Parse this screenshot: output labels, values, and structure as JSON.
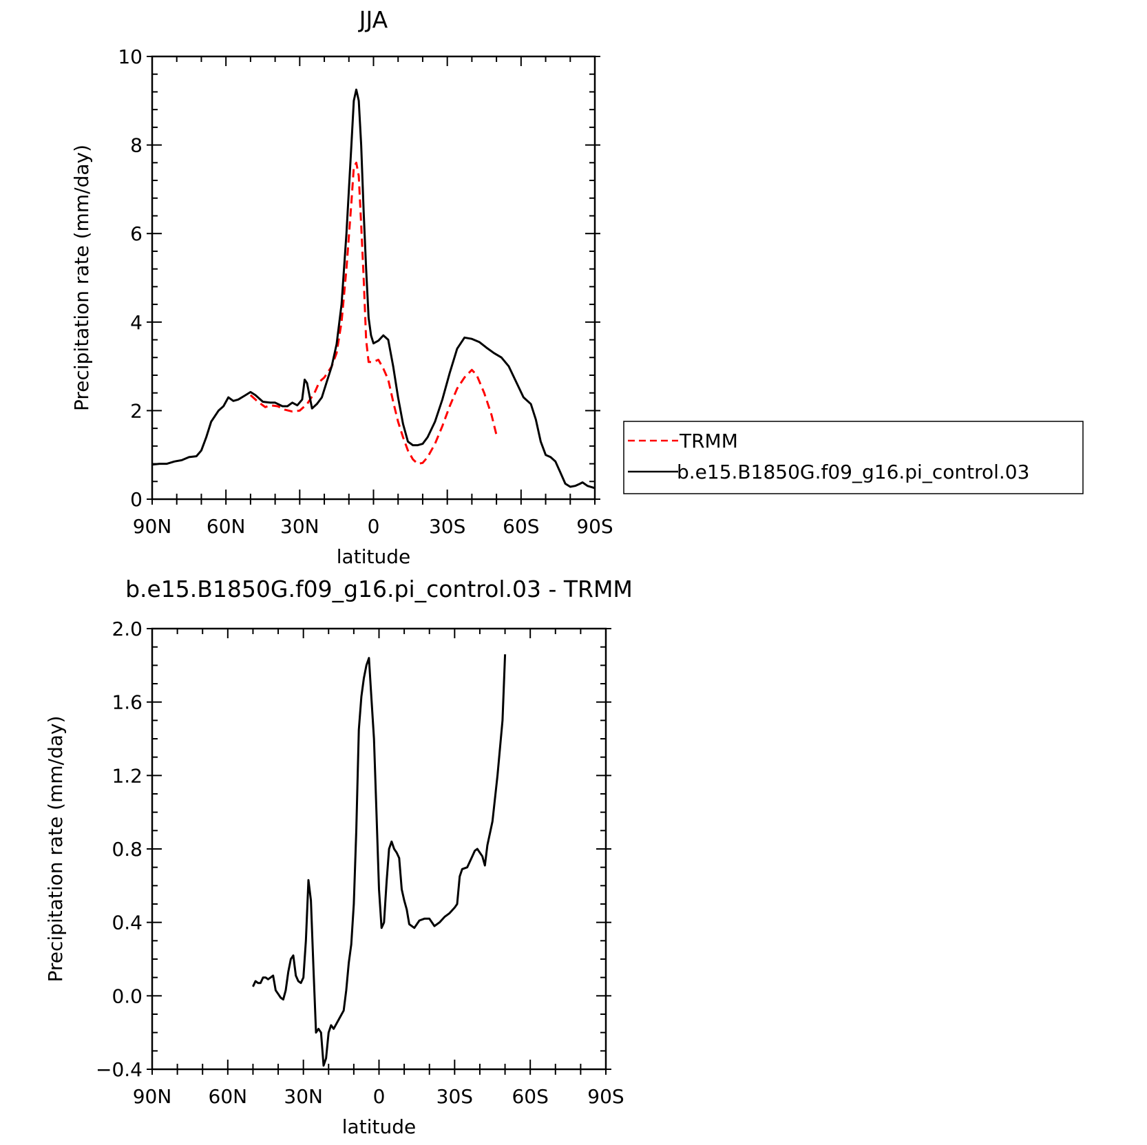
{
  "chart_data": [
    {
      "type": "line",
      "title": "JJA",
      "xlabel": "latitude",
      "ylabel": "Precipitation rate (mm/day)",
      "xlim": [
        -90,
        90
      ],
      "ylim": [
        0,
        10
      ],
      "x_note_tick_values": [
        -90,
        -60,
        -30,
        0,
        30,
        60,
        90
      ],
      "x_tick_labels": [
        "90N",
        "60N",
        "30N",
        "0",
        "30S",
        "60S",
        "90S"
      ],
      "y_tick_values": [
        0,
        2,
        4,
        6,
        8,
        10
      ],
      "y_tick_labels": [
        "0",
        "2",
        "4",
        "6",
        "8",
        "10"
      ],
      "legend_placement": "right",
      "series": [
        {
          "name": "TRMM",
          "color": "#ff0000",
          "style": "dashed",
          "points": [
            [
              -50,
              2.35
            ],
            [
              -47,
              2.2
            ],
            [
              -44,
              2.08
            ],
            [
              -42,
              2.12
            ],
            [
              -39,
              2.1
            ],
            [
              -36,
              2.02
            ],
            [
              -33,
              1.98
            ],
            [
              -30,
              2.0
            ],
            [
              -27,
              2.15
            ],
            [
              -24,
              2.4
            ],
            [
              -22,
              2.65
            ],
            [
              -20,
              2.75
            ],
            [
              -17,
              3.0
            ],
            [
              -15,
              3.3
            ],
            [
              -13,
              4.0
            ],
            [
              -11,
              5.2
            ],
            [
              -9,
              6.7
            ],
            [
              -8,
              7.5
            ],
            [
              -7,
              7.6
            ],
            [
              -6,
              7.3
            ],
            [
              -5,
              6.2
            ],
            [
              -4,
              5.0
            ],
            [
              -3,
              3.6
            ],
            [
              -2,
              3.1
            ],
            [
              0,
              3.1
            ],
            [
              2,
              3.15
            ],
            [
              4,
              2.95
            ],
            [
              6,
              2.7
            ],
            [
              8,
              2.2
            ],
            [
              10,
              1.75
            ],
            [
              12,
              1.4
            ],
            [
              14,
              1.1
            ],
            [
              16,
              0.9
            ],
            [
              18,
              0.8
            ],
            [
              20,
              0.82
            ],
            [
              22,
              0.95
            ],
            [
              25,
              1.25
            ],
            [
              28,
              1.65
            ],
            [
              31,
              2.1
            ],
            [
              34,
              2.5
            ],
            [
              37,
              2.75
            ],
            [
              40,
              2.92
            ],
            [
              42,
              2.8
            ],
            [
              45,
              2.4
            ],
            [
              48,
              1.9
            ],
            [
              50,
              1.45
            ]
          ]
        },
        {
          "name": "b.e15.B1850G.f09_g16.pi_control.03",
          "color": "#000000",
          "style": "solid",
          "points": [
            [
              -90,
              0.78
            ],
            [
              -87,
              0.8
            ],
            [
              -84,
              0.8
            ],
            [
              -81,
              0.85
            ],
            [
              -78,
              0.88
            ],
            [
              -75,
              0.95
            ],
            [
              -72,
              0.97
            ],
            [
              -70,
              1.1
            ],
            [
              -68,
              1.4
            ],
            [
              -66,
              1.75
            ],
            [
              -63,
              2.0
            ],
            [
              -61,
              2.1
            ],
            [
              -59,
              2.3
            ],
            [
              -57,
              2.22
            ],
            [
              -55,
              2.25
            ],
            [
              -52,
              2.35
            ],
            [
              -50,
              2.42
            ],
            [
              -48,
              2.35
            ],
            [
              -45,
              2.2
            ],
            [
              -42,
              2.18
            ],
            [
              -40,
              2.18
            ],
            [
              -37,
              2.1
            ],
            [
              -35,
              2.1
            ],
            [
              -33,
              2.18
            ],
            [
              -31,
              2.12
            ],
            [
              -29,
              2.25
            ],
            [
              -28,
              2.7
            ],
            [
              -27,
              2.62
            ],
            [
              -25,
              2.05
            ],
            [
              -23,
              2.15
            ],
            [
              -21,
              2.3
            ],
            [
              -19,
              2.65
            ],
            [
              -17,
              3.0
            ],
            [
              -15,
              3.5
            ],
            [
              -13,
              4.4
            ],
            [
              -11,
              6.0
            ],
            [
              -9,
              8.0
            ],
            [
              -8,
              9.0
            ],
            [
              -7,
              9.25
            ],
            [
              -6,
              9.0
            ],
            [
              -5,
              8.0
            ],
            [
              -4,
              6.5
            ],
            [
              -3,
              5.2
            ],
            [
              -2,
              4.1
            ],
            [
              -1,
              3.7
            ],
            [
              0,
              3.52
            ],
            [
              2,
              3.58
            ],
            [
              4,
              3.7
            ],
            [
              6,
              3.6
            ],
            [
              8,
              3.0
            ],
            [
              10,
              2.3
            ],
            [
              12,
              1.7
            ],
            [
              14,
              1.3
            ],
            [
              16,
              1.22
            ],
            [
              18,
              1.22
            ],
            [
              20,
              1.25
            ],
            [
              22,
              1.4
            ],
            [
              25,
              1.75
            ],
            [
              28,
              2.25
            ],
            [
              31,
              2.85
            ],
            [
              34,
              3.4
            ],
            [
              37,
              3.65
            ],
            [
              40,
              3.62
            ],
            [
              43,
              3.55
            ],
            [
              46,
              3.42
            ],
            [
              49,
              3.3
            ],
            [
              52,
              3.2
            ],
            [
              55,
              3.0
            ],
            [
              58,
              2.65
            ],
            [
              61,
              2.3
            ],
            [
              64,
              2.15
            ],
            [
              66,
              1.8
            ],
            [
              68,
              1.3
            ],
            [
              70,
              1.0
            ],
            [
              72,
              0.95
            ],
            [
              74,
              0.85
            ],
            [
              76,
              0.6
            ],
            [
              78,
              0.35
            ],
            [
              80,
              0.28
            ],
            [
              82,
              0.3
            ],
            [
              84,
              0.35
            ],
            [
              85,
              0.38
            ],
            [
              87,
              0.3
            ],
            [
              90,
              0.25
            ]
          ]
        }
      ]
    },
    {
      "type": "line",
      "title": "b.e15.B1850G.f09_g16.pi_control.03 - TRMM",
      "xlabel": "latitude",
      "ylabel": "Precipitation rate (mm/day)",
      "xlim": [
        -90,
        90
      ],
      "ylim": [
        -0.4,
        2.0
      ],
      "x_note_tick_values": [
        -90,
        -60,
        -30,
        0,
        30,
        60,
        90
      ],
      "x_tick_labels": [
        "90N",
        "60N",
        "30N",
        "0",
        "30S",
        "60S",
        "90S"
      ],
      "y_tick_values": [
        -0.4,
        0.0,
        0.4,
        0.8,
        1.2,
        1.6,
        2.0
      ],
      "y_tick_labels": [
        "−0.4",
        "0.0",
        "0.4",
        "0.8",
        "1.2",
        "1.6",
        "2.0"
      ],
      "series": [
        {
          "color": "#000000",
          "style": "solid",
          "points": [
            [
              -50,
              0.05
            ],
            [
              -49,
              0.08
            ],
            [
              -48,
              0.07
            ],
            [
              -47,
              0.07
            ],
            [
              -46,
              0.1
            ],
            [
              -45,
              0.1
            ],
            [
              -44,
              0.09
            ],
            [
              -43,
              0.1
            ],
            [
              -42,
              0.11
            ],
            [
              -41,
              0.03
            ],
            [
              -40,
              0.01
            ],
            [
              -39,
              -0.01
            ],
            [
              -38,
              -0.02
            ],
            [
              -37,
              0.03
            ],
            [
              -36,
              0.13
            ],
            [
              -35,
              0.2
            ],
            [
              -34,
              0.22
            ],
            [
              -33,
              0.11
            ],
            [
              -32,
              0.08
            ],
            [
              -31,
              0.07
            ],
            [
              -30,
              0.1
            ],
            [
              -29,
              0.3
            ],
            [
              -28,
              0.63
            ],
            [
              -27,
              0.52
            ],
            [
              -26,
              0.15
            ],
            [
              -25,
              -0.2
            ],
            [
              -24,
              -0.18
            ],
            [
              -23,
              -0.2
            ],
            [
              -22,
              -0.38
            ],
            [
              -21,
              -0.34
            ],
            [
              -20,
              -0.2
            ],
            [
              -19,
              -0.16
            ],
            [
              -18,
              -0.18
            ],
            [
              -16,
              -0.13
            ],
            [
              -14,
              -0.08
            ],
            [
              -13,
              0.03
            ],
            [
              -12,
              0.18
            ],
            [
              -11,
              0.28
            ],
            [
              -10,
              0.5
            ],
            [
              -9,
              0.9
            ],
            [
              -8,
              1.45
            ],
            [
              -7,
              1.63
            ],
            [
              -6,
              1.73
            ],
            [
              -5,
              1.8
            ],
            [
              -4,
              1.84
            ],
            [
              -3,
              1.62
            ],
            [
              -2,
              1.4
            ],
            [
              -1,
              1.0
            ],
            [
              0,
              0.58
            ],
            [
              1,
              0.37
            ],
            [
              2,
              0.4
            ],
            [
              3,
              0.62
            ],
            [
              4,
              0.8
            ],
            [
              5,
              0.84
            ],
            [
              6,
              0.8
            ],
            [
              7,
              0.78
            ],
            [
              8,
              0.75
            ],
            [
              9,
              0.58
            ],
            [
              10,
              0.52
            ],
            [
              11,
              0.47
            ],
            [
              12,
              0.39
            ],
            [
              14,
              0.37
            ],
            [
              16,
              0.41
            ],
            [
              18,
              0.42
            ],
            [
              20,
              0.42
            ],
            [
              22,
              0.38
            ],
            [
              24,
              0.4
            ],
            [
              26,
              0.43
            ],
            [
              28,
              0.45
            ],
            [
              30,
              0.48
            ],
            [
              31,
              0.5
            ],
            [
              32,
              0.65
            ],
            [
              33,
              0.69
            ],
            [
              35,
              0.7
            ],
            [
              37,
              0.76
            ],
            [
              38,
              0.79
            ],
            [
              39,
              0.8
            ],
            [
              41,
              0.76
            ],
            [
              42,
              0.71
            ],
            [
              43,
              0.82
            ],
            [
              45,
              0.95
            ],
            [
              47,
              1.2
            ],
            [
              49,
              1.5
            ],
            [
              50,
              1.86
            ]
          ]
        }
      ]
    }
  ]
}
